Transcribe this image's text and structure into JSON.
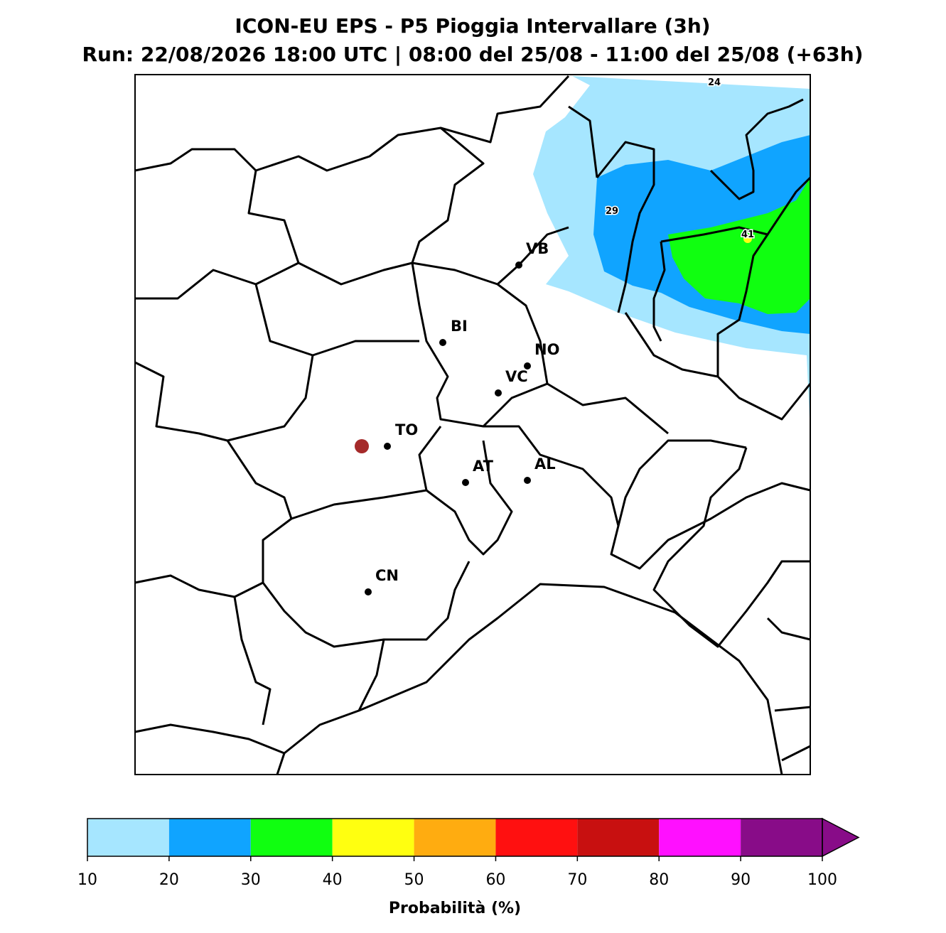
{
  "header": {
    "title": "ICON-EU EPS - P5 Pioggia Intervallare (3h)",
    "subtitle": "Run: 22/08/2026 18:00 UTC | 08:00 del 25/08 - 11:00 del 25/08 (+63h)"
  },
  "cities": [
    "VB",
    "BI",
    "NO",
    "VC",
    "TO",
    "AT",
    "AL",
    "CN"
  ],
  "contour_labels": [
    24,
    29,
    41
  ],
  "colorbar": {
    "label": "Probabilità (%)",
    "ticks": [
      10,
      20,
      30,
      40,
      50,
      60,
      70,
      80,
      90,
      100
    ],
    "colors": [
      "#a6e6ff",
      "#10a4ff",
      "#10ff10",
      "#ffff10",
      "#ffac10",
      "#ff1010",
      "#c81010",
      "#ff10ff",
      "#880c88"
    ]
  }
}
